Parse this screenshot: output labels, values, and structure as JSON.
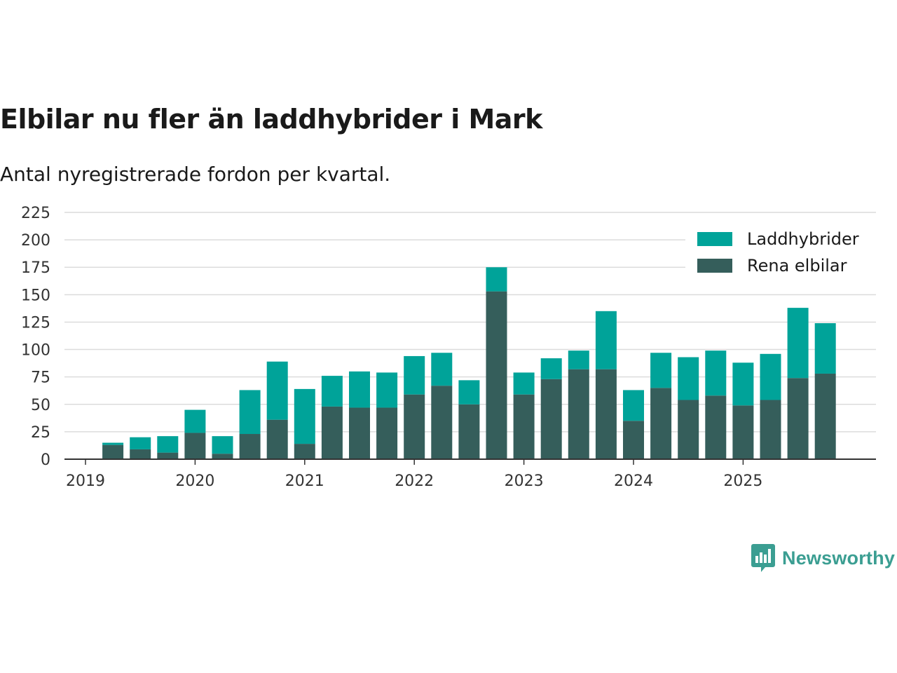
{
  "header": {
    "title": "Elbilar nu fler än laddhybrider i Mark",
    "subtitle": "Antal nyregistrerade fordon per kvartal."
  },
  "branding": {
    "logo_text": "Newsworthy"
  },
  "chart_data": {
    "type": "bar",
    "stacked": true,
    "title": "Elbilar nu fler än laddhybrider i Mark",
    "subtitle": "Antal nyregistrerade fordon per kvartal.",
    "xlabel": "",
    "ylabel": "",
    "ylim": [
      0,
      225
    ],
    "yticks": [
      0,
      25,
      50,
      75,
      100,
      125,
      150,
      175,
      200,
      225
    ],
    "year_labels": [
      "2019",
      "2020",
      "2021",
      "2022",
      "2023",
      "2024",
      "2025"
    ],
    "grid": true,
    "legend_position": "top-right",
    "categories": [
      "2019 Q1",
      "2019 Q2",
      "2019 Q3",
      "2019 Q4",
      "2020 Q1",
      "2020 Q2",
      "2020 Q3",
      "2020 Q4",
      "2021 Q1",
      "2021 Q2",
      "2021 Q3",
      "2021 Q4",
      "2022 Q1",
      "2022 Q2",
      "2022 Q3",
      "2022 Q4",
      "2023 Q1",
      "2023 Q2",
      "2023 Q3",
      "2023 Q4",
      "2024 Q1",
      "2024 Q2",
      "2024 Q3",
      "2024 Q4",
      "2025 Q1",
      "2025 Q2",
      "2025 Q3",
      "2025 Q4"
    ],
    "series": [
      {
        "name": "Rena elbilar",
        "color": "#355e5b",
        "values": [
          0,
          13,
          9,
          6,
          24,
          5,
          23,
          36,
          14,
          48,
          47,
          47,
          59,
          67,
          50,
          153,
          59,
          73,
          82,
          82,
          35,
          65,
          54,
          58,
          49,
          54,
          74,
          78
        ]
      },
      {
        "name": "Laddhybrider",
        "color": "#00a399",
        "values": [
          0,
          2,
          11,
          15,
          21,
          16,
          40,
          53,
          50,
          28,
          33,
          32,
          35,
          30,
          22,
          22,
          20,
          19,
          17,
          53,
          28,
          32,
          39,
          41,
          39,
          42,
          64,
          46
        ]
      }
    ],
    "legend": [
      {
        "name": "Laddhybrider",
        "color": "#00a399"
      },
      {
        "name": "Rena elbilar",
        "color": "#355e5b"
      }
    ]
  }
}
